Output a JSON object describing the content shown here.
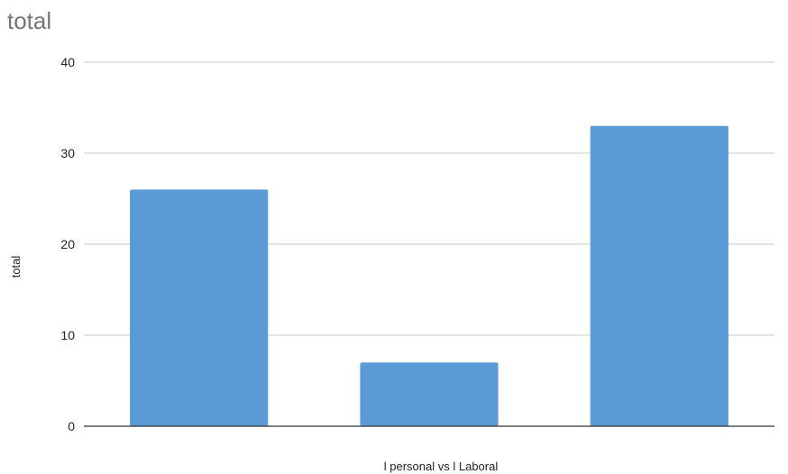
{
  "chart_data": {
    "type": "bar",
    "title": "total",
    "xlabel": "l personal vs l Laboral",
    "ylabel": "total",
    "categories": [
      "",
      "",
      ""
    ],
    "values": [
      26,
      7,
      33
    ],
    "ylim": [
      0,
      40
    ],
    "yticks": [
      0,
      10,
      20,
      30,
      40
    ],
    "grid": true,
    "legend": "none",
    "bar_color": "#5b9bd5",
    "grid_color": "#c8c8c8",
    "axis_color": "#333333"
  }
}
